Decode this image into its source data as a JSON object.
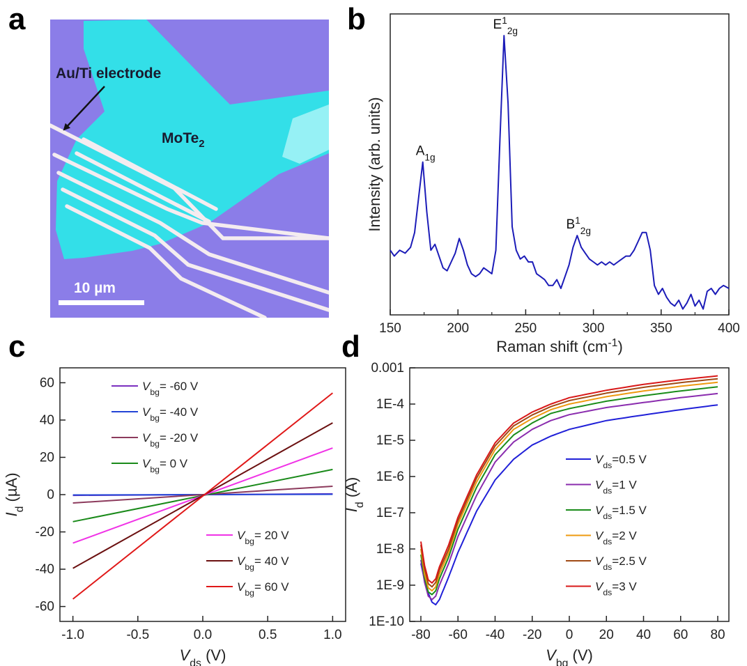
{
  "panel_labels": [
    "a",
    "b",
    "c",
    "d"
  ],
  "micrograph": {
    "electrode_label": "Au/Ti electrode",
    "material_label": "MoTe",
    "material_subscript": "2",
    "scalebar_label": "10 µm",
    "colors": {
      "substrate": "#8b7de8",
      "flake": "#33dfe8",
      "electrode": "#f4ecf0"
    }
  },
  "chart_data": [
    {
      "panel": "b",
      "type": "line",
      "xlabel": "Raman shift (cm",
      "xlabel_sup": "-1",
      "xlabel_tail": ")",
      "ylabel": "Intensity (arb. units)",
      "xlim": [
        150,
        400
      ],
      "xticks": [
        "150",
        "200",
        "250",
        "300",
        "350",
        "400"
      ],
      "yticks_shown": false,
      "color": "#1c1cb8",
      "series": [
        {
          "x": [
            150,
            153,
            157,
            161,
            165,
            168,
            171,
            174,
            177,
            180,
            183,
            186,
            189,
            192,
            195,
            198,
            201,
            204,
            207,
            210,
            213,
            216,
            219,
            222,
            225,
            228,
            231,
            234,
            237,
            240,
            243,
            246,
            249,
            252,
            255,
            258,
            261,
            264,
            267,
            270,
            273,
            276,
            279,
            282,
            285,
            288,
            291,
            294,
            297,
            300,
            303,
            306,
            309,
            312,
            315,
            318,
            321,
            324,
            327,
            330,
            333,
            336,
            339,
            342,
            345,
            348,
            351,
            354,
            357,
            360,
            363,
            366,
            369,
            372,
            375,
            378,
            381,
            384,
            387,
            390,
            393,
            396,
            400
          ],
          "y": [
            0.22,
            0.2,
            0.22,
            0.21,
            0.23,
            0.28,
            0.4,
            0.52,
            0.35,
            0.22,
            0.24,
            0.2,
            0.16,
            0.15,
            0.18,
            0.21,
            0.26,
            0.22,
            0.17,
            0.14,
            0.13,
            0.14,
            0.16,
            0.15,
            0.14,
            0.22,
            0.6,
            0.95,
            0.72,
            0.3,
            0.22,
            0.19,
            0.2,
            0.18,
            0.18,
            0.14,
            0.13,
            0.12,
            0.1,
            0.1,
            0.12,
            0.09,
            0.13,
            0.17,
            0.23,
            0.27,
            0.23,
            0.21,
            0.19,
            0.18,
            0.17,
            0.18,
            0.17,
            0.18,
            0.17,
            0.18,
            0.19,
            0.2,
            0.2,
            0.22,
            0.25,
            0.28,
            0.28,
            0.22,
            0.1,
            0.07,
            0.09,
            0.06,
            0.04,
            0.03,
            0.05,
            0.02,
            0.04,
            0.07,
            0.03,
            0.05,
            0.02,
            0.08,
            0.09,
            0.07,
            0.09,
            0.1,
            0.09
          ]
        }
      ],
      "annotations": [
        {
          "main": "A",
          "sup": "",
          "sub": "1g",
          "x": 174,
          "y": 0.52
        },
        {
          "main": "E",
          "sup": "1",
          "sub": "2g",
          "x": 234,
          "y": 0.95
        },
        {
          "main": "B",
          "sup": "1",
          "sub": "2g",
          "x": 288,
          "y": 0.27
        }
      ]
    },
    {
      "panel": "c",
      "type": "line",
      "xlabel": "V",
      "xlabel_sub": "ds",
      "xlabel_tail": " (V)",
      "ylabel": "I",
      "ylabel_sub": "d",
      "ylabel_tail": " (µA)",
      "xlim": [
        -1.1,
        1.1
      ],
      "ylim": [
        -68,
        68
      ],
      "xticks": [
        "-1.0",
        "-0.5",
        "0.0",
        "0.5",
        "1.0"
      ],
      "yticks": [
        "-60",
        "-40",
        "-20",
        "0",
        "20",
        "40",
        "60"
      ],
      "series": [
        {
          "name": "V",
          "sub": "bg",
          "tail": "= -60 V",
          "color": "#7a2fbf",
          "x": [
            -1,
            1
          ],
          "y": [
            -0.4,
            0.4
          ]
        },
        {
          "name": "V",
          "sub": "bg",
          "tail": "= -40 V",
          "color": "#2244d6",
          "x": [
            -1,
            1
          ],
          "y": [
            -0.2,
            0.2
          ]
        },
        {
          "name": "V",
          "sub": "bg",
          "tail": "= -20 V",
          "color": "#8c3a5c",
          "x": [
            -1,
            1
          ],
          "y": [
            -4.5,
            4.5
          ]
        },
        {
          "name": "V",
          "sub": "bg",
          "tail": "= 0 V",
          "color": "#1a8a1a",
          "x": [
            -1,
            1
          ],
          "y": [
            -14.5,
            13.5
          ]
        },
        {
          "name": "V",
          "sub": "bg",
          "tail": "= 20 V",
          "color": "#f032e6",
          "x": [
            -1,
            1
          ],
          "y": [
            -26,
            25
          ]
        },
        {
          "name": "V",
          "sub": "bg",
          "tail": "= 40 V",
          "color": "#6b1010",
          "x": [
            -1,
            1
          ],
          "y": [
            -39.5,
            38.5
          ]
        },
        {
          "name": "V",
          "sub": "bg",
          "tail": "= 60 V",
          "color": "#e01818",
          "x": [
            -1,
            1
          ],
          "y": [
            -56,
            54.5
          ]
        }
      ]
    },
    {
      "panel": "d",
      "type": "line",
      "yscale": "log",
      "xlabel": "V",
      "xlabel_sub": "bg",
      "xlabel_tail": " (V)",
      "ylabel": "I",
      "ylabel_sub": "d",
      "ylabel_tail": " (A)",
      "xlim": [
        -86,
        86
      ],
      "ylim": [
        1e-10,
        0.001
      ],
      "xticks": [
        "-80",
        "-60",
        "-40",
        "-20",
        "0",
        "20",
        "40",
        "60",
        "80"
      ],
      "yticks": [
        "1E-10",
        "1E-9",
        "1E-8",
        "1E-7",
        "1E-6",
        "1E-5",
        "1E-4",
        "0.001"
      ],
      "series": [
        {
          "name": "V",
          "sub": "ds",
          "tail": "=0.5 V",
          "color": "#2020d8",
          "x": [
            -80,
            -77,
            -74,
            -72,
            -70,
            -65,
            -60,
            -50,
            -40,
            -30,
            -20,
            -10,
            0,
            20,
            40,
            60,
            80
          ],
          "y": [
            4e-09,
            8e-10,
            3.4e-10,
            2.9e-10,
            4e-10,
            1.7e-09,
            8e-09,
            1.1e-07,
            8e-07,
            3e-06,
            7.4e-06,
            1.3e-05,
            2e-05,
            3.5e-05,
            5e-05,
            7e-05,
            9.5e-05
          ]
        },
        {
          "name": "V",
          "sub": "ds",
          "tail": "=1 V",
          "color": "#8a2cae",
          "x": [
            -80,
            -78,
            -76,
            -74,
            -72,
            -70,
            -65,
            -60,
            -50,
            -40,
            -30,
            -20,
            -10,
            0,
            20,
            40,
            60,
            80
          ],
          "y": [
            5e-09,
            1.2e-09,
            5e-10,
            4e-10,
            5e-10,
            1e-09,
            4e-09,
            2.2e-08,
            3e-07,
            2.5e-06,
            9e-06,
            2e-05,
            3.5e-05,
            5.1e-05,
            8e-05,
            0.00011,
            0.00015,
            0.000195
          ]
        },
        {
          "name": "V",
          "sub": "ds",
          "tail": "=1.5 V",
          "color": "#1a8c1a",
          "x": [
            -80,
            -78,
            -76,
            -74,
            -72,
            -70,
            -65,
            -60,
            -50,
            -40,
            -30,
            -20,
            -10,
            0,
            20,
            40,
            60,
            80
          ],
          "y": [
            7e-09,
            1.6e-09,
            6.5e-10,
            5.5e-10,
            7e-10,
            1.5e-09,
            6e-09,
            3.5e-08,
            5e-07,
            4e-06,
            1.4e-05,
            3e-05,
            5.5e-05,
            7.5e-05,
            0.00012,
            0.00017,
            0.00023,
            0.0003
          ]
        },
        {
          "name": "V",
          "sub": "ds",
          "tail": "=2 V",
          "color": "#ee9a10",
          "x": [
            -80,
            -78,
            -76,
            -74,
            -72,
            -70,
            -65,
            -60,
            -50,
            -40,
            -30,
            -20,
            -10,
            0,
            20,
            40,
            60,
            80
          ],
          "y": [
            1e-08,
            2e-09,
            8.5e-10,
            7e-10,
            9e-10,
            2e-09,
            8e-09,
            4.8e-08,
            7e-07,
            5.5e-06,
            2e-05,
            4e-05,
            7e-05,
            0.0001,
            0.00016,
            0.00023,
            0.00031,
            0.0004
          ]
        },
        {
          "name": "V",
          "sub": "ds",
          "tail": "=2.5 V",
          "color": "#a04a14",
          "x": [
            -80,
            -78,
            -76,
            -74,
            -72,
            -70,
            -65,
            -60,
            -50,
            -40,
            -30,
            -20,
            -10,
            0,
            20,
            40,
            60,
            80
          ],
          "y": [
            1.3e-08,
            2.8e-09,
            1.1e-09,
            9e-10,
            1.2e-09,
            2.6e-09,
            1e-08,
            6e-08,
            9e-07,
            7e-06,
            2.5e-05,
            5e-05,
            8.5e-05,
            0.000125,
            0.0002,
            0.00029,
            0.00039,
            0.0005
          ]
        },
        {
          "name": "V",
          "sub": "ds",
          "tail": "=3 V",
          "color": "#d81818",
          "x": [
            -80,
            -78,
            -76,
            -74,
            -72,
            -70,
            -65,
            -60,
            -50,
            -40,
            -30,
            -20,
            -10,
            0,
            20,
            40,
            60,
            80
          ],
          "y": [
            1.6e-08,
            3.5e-09,
            1.4e-09,
            1.15e-09,
            1.5e-09,
            3.2e-09,
            1.3e-08,
            7.5e-08,
            1.1e-06,
            8.5e-06,
            3e-05,
            6e-05,
            0.0001,
            0.00015,
            0.00024,
            0.00035,
            0.00047,
            0.0006
          ]
        }
      ]
    }
  ]
}
